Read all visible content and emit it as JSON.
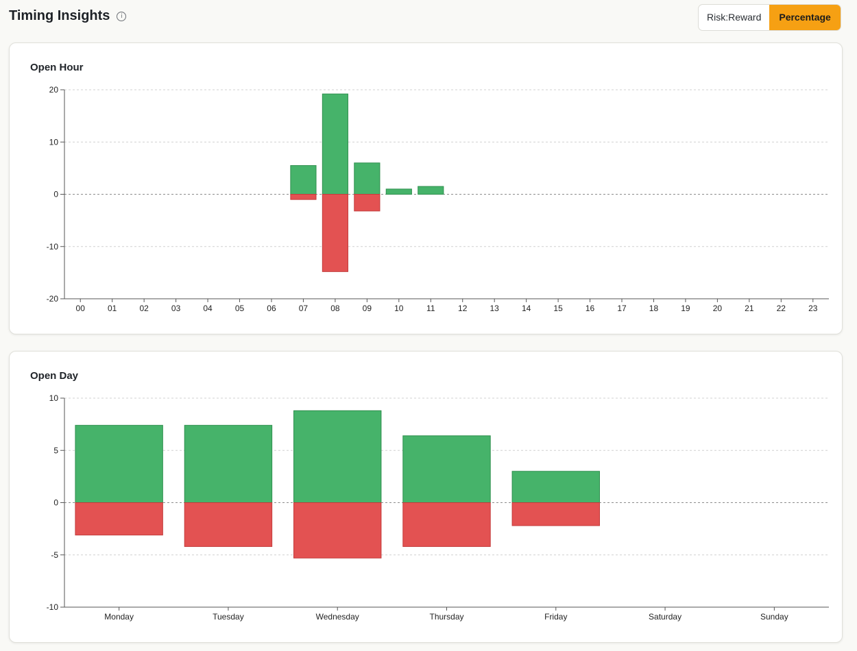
{
  "header": {
    "title": "Timing Insights",
    "info_icon": "info-icon",
    "toggle": {
      "options": [
        "Risk:Reward",
        "Percentage"
      ],
      "selected": "Percentage"
    }
  },
  "colors": {
    "positive": "#46b36a",
    "negative": "#e35252",
    "accent": "#f6a013"
  },
  "chart_data": [
    {
      "type": "bar",
      "title": "Open Hour",
      "categories": [
        "00",
        "01",
        "02",
        "03",
        "04",
        "05",
        "06",
        "07",
        "08",
        "09",
        "10",
        "11",
        "12",
        "13",
        "14",
        "15",
        "16",
        "17",
        "18",
        "19",
        "20",
        "21",
        "22",
        "23"
      ],
      "series": [
        {
          "values": [
            0,
            0,
            0,
            0,
            0,
            0,
            0,
            5.5,
            19.2,
            6,
            1,
            1.5,
            0,
            0,
            0,
            0,
            0,
            0,
            0,
            0,
            0,
            0,
            0,
            0
          ]
        },
        {
          "values": [
            0,
            0,
            0,
            0,
            0,
            0,
            0,
            -1,
            -14.8,
            -3.2,
            0,
            0,
            0,
            0,
            0,
            0,
            0,
            0,
            0,
            0,
            0,
            0,
            0,
            0
          ]
        }
      ],
      "ylim": [
        -20,
        20
      ],
      "yticks": [
        20,
        10,
        0,
        -10,
        -20
      ],
      "grid": true
    },
    {
      "type": "bar",
      "title": "Open Day",
      "categories": [
        "Monday",
        "Tuesday",
        "Wednesday",
        "Thursday",
        "Friday",
        "Saturday",
        "Sunday"
      ],
      "series": [
        {
          "values": [
            7.4,
            7.4,
            8.8,
            6.4,
            3.0,
            0,
            0
          ]
        },
        {
          "values": [
            -3.1,
            -4.2,
            -5.3,
            -4.2,
            -2.2,
            0,
            0
          ]
        }
      ],
      "ylim": [
        -10,
        10
      ],
      "yticks": [
        10,
        5,
        0,
        -5,
        -10
      ],
      "grid": true
    }
  ]
}
